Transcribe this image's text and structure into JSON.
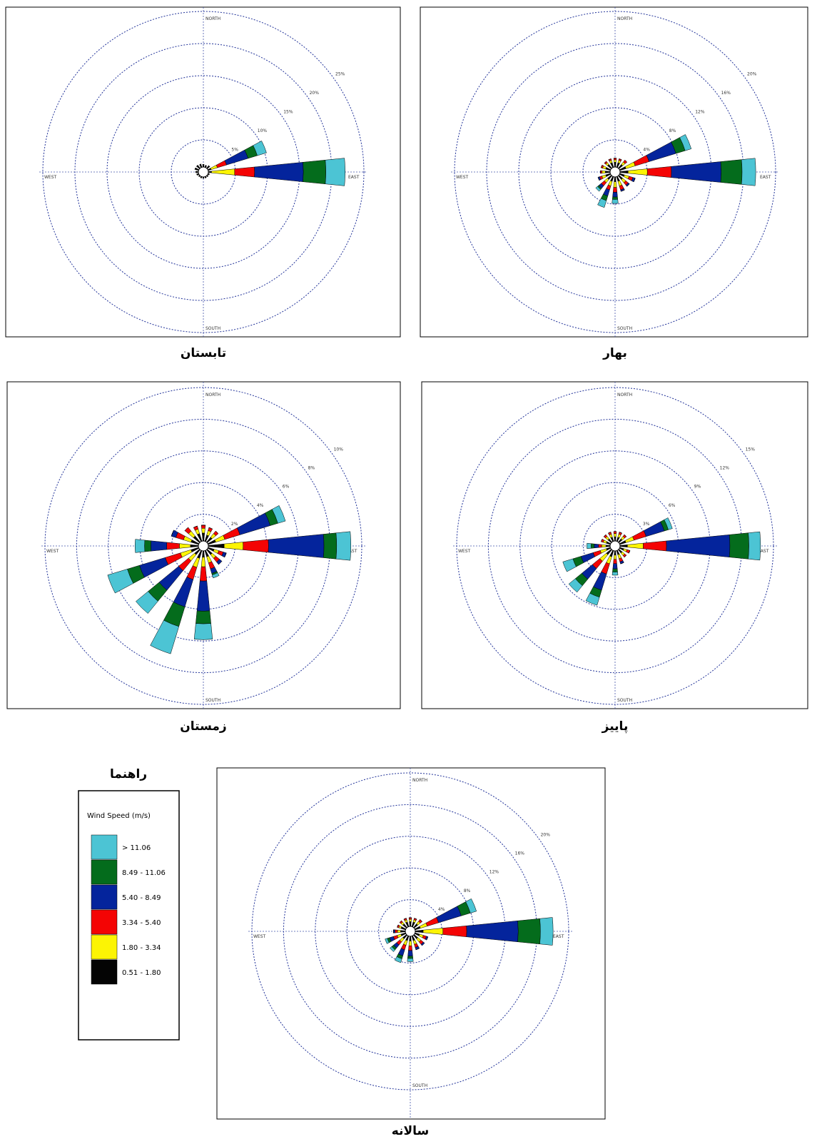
{
  "legend": {
    "title": "راهنما",
    "subtitle": "Wind Speed (m/s)",
    "classes": [
      {
        "name": "> 11.06",
        "color": "#4cc4d4"
      },
      {
        "name": "8.49 - 11.06",
        "color": "#046c1c"
      },
      {
        "name": "5.40 - 8.49",
        "color": "#04249c"
      },
      {
        "name": "3.34 - 5.40",
        "color": "#f40404"
      },
      {
        "name": "1.80 - 3.34",
        "color": "#fcf404"
      },
      {
        "name": "0.51 - 1.80",
        "color": "#040404"
      }
    ]
  },
  "chart_data": [
    {
      "type": "wind_rose",
      "title": "تابستان",
      "direction_labels": {
        "north": "NORTH",
        "east": "EAST",
        "south": "SOUTH",
        "west": "WEST"
      },
      "categories": [
        null,
        null,
        null,
        null,
        null,
        null,
        null,
        null,
        null,
        null,
        null,
        null,
        null,
        null,
        null,
        null
      ],
      "ylim": [
        0,
        25
      ],
      "yticks": [
        {
          "value": 5,
          "label": "5%"
        },
        {
          "value": 10,
          "label": "10%"
        },
        {
          "value": 15,
          "label": "15%"
        },
        {
          "value": 20,
          "label": "20%"
        },
        {
          "value": 25,
          "label": "25%"
        }
      ],
      "series": [
        {
          "values": [
            0,
            0,
            0,
            1.5,
            3.0,
            0,
            0,
            0,
            0,
            0,
            0,
            0,
            0,
            0,
            0,
            0
          ]
        },
        {
          "values": [
            0,
            0,
            0,
            1.5,
            3.5,
            0,
            0,
            0,
            0,
            0,
            0,
            0,
            0,
            0,
            0,
            0
          ]
        },
        {
          "values": [
            0,
            0,
            0,
            3.5,
            7.6,
            0,
            0,
            0,
            0,
            0,
            0,
            0,
            0,
            0,
            0,
            0
          ]
        },
        {
          "values": [
            0,
            0,
            0,
            1.5,
            3.1,
            0,
            0,
            0,
            0,
            0,
            0,
            0,
            0,
            0,
            0,
            0
          ]
        },
        {
          "values": [
            0,
            0,
            0,
            1.0,
            3.6,
            0,
            0,
            0,
            0,
            0,
            0,
            0,
            0,
            0,
            0,
            0
          ]
        },
        {
          "values": [
            0.4,
            0.3,
            0.5,
            0.5,
            0.5,
            0.2,
            0.2,
            0.2,
            0.2,
            0.2,
            0.2,
            0.3,
            0.4,
            0.6,
            0.6,
            0.5
          ]
        }
      ]
    },
    {
      "type": "wind_rose",
      "title": "بهار",
      "direction_labels": {
        "north": "NORTH",
        "east": "EAST",
        "south": "SOUTH",
        "west": "WEST"
      },
      "categories": [
        null,
        null,
        null,
        null,
        null,
        null,
        null,
        null,
        null,
        null,
        null,
        null,
        null,
        null,
        null,
        null
      ],
      "ylim": [
        0,
        20
      ],
      "yticks": [
        {
          "value": 4,
          "label": "4%"
        },
        {
          "value": 8,
          "label": "8%"
        },
        {
          "value": 12,
          "label": "12%"
        },
        {
          "value": 16,
          "label": "16%"
        },
        {
          "value": 20,
          "label": "20%"
        }
      ],
      "series": [
        {
          "values": [
            0,
            0,
            0,
            0.8,
            1.7,
            0,
            0,
            0,
            0.5,
            0.9,
            0.3,
            0,
            0,
            0,
            0,
            0
          ]
        },
        {
          "values": [
            0,
            0,
            0,
            1.2,
            2.6,
            0,
            0,
            0,
            0.3,
            0.6,
            0.2,
            0,
            0,
            0,
            0,
            0
          ]
        },
        {
          "values": [
            0,
            0,
            0,
            3.5,
            6.2,
            0.3,
            0.2,
            0.2,
            0.6,
            0.8,
            0.4,
            0.2,
            0,
            0,
            0,
            0
          ]
        },
        {
          "values": [
            0.2,
            0.2,
            0.3,
            1.8,
            3.0,
            0.5,
            0.4,
            0.5,
            0.6,
            0.5,
            0.5,
            0.3,
            0.2,
            0.2,
            0.2,
            0.2
          ]
        },
        {
          "values": [
            0.3,
            0.3,
            0.4,
            1.2,
            2.4,
            0.6,
            0.5,
            0.6,
            0.7,
            0.6,
            0.5,
            0.5,
            0.4,
            0.4,
            0.3,
            0.3
          ]
        },
        {
          "values": [
            0.6,
            0.6,
            0.6,
            0.8,
            1.0,
            0.6,
            0.6,
            0.6,
            0.6,
            0.6,
            0.6,
            0.6,
            0.6,
            0.6,
            0.6,
            0.6
          ]
        }
      ]
    },
    {
      "type": "wind_rose",
      "title": "زمستان",
      "direction_labels": {
        "north": "NORTH",
        "east": "EAST",
        "south": "SOUTH",
        "west": "WEST"
      },
      "categories": [
        null,
        null,
        null,
        null,
        null,
        null,
        null,
        null,
        null,
        null,
        null,
        null,
        null,
        null,
        null,
        null
      ],
      "ylim": [
        0,
        10
      ],
      "yticks": [
        {
          "value": 2,
          "label": "2%"
        },
        {
          "value": 4,
          "label": "4%"
        },
        {
          "value": 6,
          "label": "6%"
        },
        {
          "value": 8,
          "label": "8%"
        },
        {
          "value": 10,
          "label": "10%"
        }
      ],
      "series": [
        {
          "values": [
            0,
            0,
            0,
            0.5,
            0.9,
            0,
            0,
            0.2,
            1.0,
            1.8,
            1.0,
            1.3,
            0.6,
            0,
            0,
            0
          ]
        },
        {
          "values": [
            0,
            0,
            0,
            0.5,
            0.8,
            0,
            0,
            0.1,
            0.8,
            1.3,
            0.9,
            0.8,
            0.4,
            0,
            0,
            0
          ]
        },
        {
          "values": [
            0,
            0,
            0,
            2.0,
            3.5,
            0.2,
            0.2,
            0.3,
            1.9,
            1.8,
            1.6,
            1.7,
            1.0,
            0.3,
            0,
            0
          ]
        },
        {
          "values": [
            0.2,
            0.2,
            0.2,
            1.0,
            1.6,
            0.3,
            0.3,
            0.4,
            0.9,
            0.8,
            0.8,
            1.0,
            0.8,
            0.5,
            0.3,
            0.2
          ]
        },
        {
          "values": [
            0.3,
            0.3,
            0.3,
            0.6,
            1.2,
            0.3,
            0.3,
            0.4,
            0.6,
            0.6,
            0.5,
            0.7,
            0.7,
            0.5,
            0.4,
            0.3
          ]
        },
        {
          "values": [
            0.5,
            0.4,
            0.4,
            0.5,
            1.0,
            0.4,
            0.4,
            0.4,
            0.4,
            0.5,
            0.4,
            0.5,
            0.5,
            0.5,
            0.5,
            0.5
          ]
        }
      ]
    },
    {
      "type": "wind_rose",
      "title": "پاییز",
      "direction_labels": {
        "north": "NORTH",
        "east": "EAST",
        "south": "SOUTH",
        "west": "WEST"
      },
      "categories": [
        null,
        null,
        null,
        null,
        null,
        null,
        null,
        null,
        null,
        null,
        null,
        null,
        null,
        null,
        null,
        null
      ],
      "ylim": [
        0,
        15
      ],
      "yticks": [
        {
          "value": 3,
          "label": "3%"
        },
        {
          "value": 6,
          "label": "6%"
        },
        {
          "value": 9,
          "label": "9%"
        },
        {
          "value": 12,
          "label": "12%"
        },
        {
          "value": 15,
          "label": "15%"
        }
      ],
      "series": [
        {
          "values": [
            0,
            0,
            0,
            0.4,
            1.1,
            0,
            0,
            0,
            0.3,
            0.8,
            0.8,
            1.0,
            0.4,
            0,
            0,
            0
          ]
        },
        {
          "values": [
            0,
            0,
            0,
            0.4,
            1.8,
            0,
            0,
            0,
            0.3,
            0.7,
            0.8,
            0.8,
            0.3,
            0,
            0,
            0
          ]
        },
        {
          "values": [
            0,
            0,
            0,
            1.8,
            6.0,
            0,
            0,
            0.2,
            0.5,
            1.6,
            1.3,
            1.2,
            0.4,
            0,
            0,
            0
          ]
        },
        {
          "values": [
            0.2,
            0.2,
            0.2,
            1.2,
            2.2,
            0.3,
            0.2,
            0.3,
            0.4,
            1.0,
            0.9,
            0.7,
            0.3,
            0.2,
            0.2,
            0.2
          ]
        },
        {
          "values": [
            0.3,
            0.3,
            0.3,
            0.8,
            1.5,
            0.3,
            0.3,
            0.4,
            0.4,
            0.7,
            0.8,
            0.6,
            0.4,
            0.3,
            0.3,
            0.3
          ]
        },
        {
          "values": [
            0.4,
            0.4,
            0.4,
            0.6,
            0.7,
            0.4,
            0.4,
            0.4,
            0.4,
            0.6,
            0.6,
            0.4,
            0.4,
            0.4,
            0.4,
            0.4
          ]
        }
      ]
    },
    {
      "type": "wind_rose",
      "title": "سالانه",
      "direction_labels": {
        "north": "NORTH",
        "east": "EAST",
        "south": "SOUTH",
        "west": "WEST"
      },
      "categories": [
        null,
        null,
        null,
        null,
        null,
        null,
        null,
        null,
        null,
        null,
        null,
        null,
        null,
        null,
        null,
        null
      ],
      "ylim": [
        0,
        20
      ],
      "yticks": [
        {
          "value": 4,
          "label": "4%"
        },
        {
          "value": 8,
          "label": "8%"
        },
        {
          "value": 12,
          "label": "12%"
        },
        {
          "value": 16,
          "label": "16%"
        },
        {
          "value": 20,
          "label": "20%"
        }
      ],
      "series": [
        {
          "values": [
            0,
            0,
            0,
            0.8,
            1.6,
            0,
            0,
            0,
            0.4,
            0.5,
            0.3,
            0.3,
            0,
            0,
            0,
            0
          ]
        },
        {
          "values": [
            0,
            0,
            0,
            1.2,
            2.8,
            0,
            0,
            0,
            0.3,
            0.4,
            0.3,
            0.3,
            0,
            0,
            0,
            0
          ]
        },
        {
          "values": [
            0,
            0,
            0,
            3.0,
            6.5,
            0.2,
            0.2,
            0.3,
            0.7,
            0.8,
            0.5,
            0.5,
            0.2,
            0,
            0,
            0
          ]
        },
        {
          "values": [
            0.2,
            0.2,
            0.3,
            1.5,
            3.0,
            0.4,
            0.4,
            0.4,
            0.6,
            0.6,
            0.5,
            0.5,
            0.3,
            0.2,
            0.2,
            0.2
          ]
        },
        {
          "values": [
            0.3,
            0.3,
            0.4,
            0.9,
            2.5,
            0.5,
            0.5,
            0.5,
            0.6,
            0.6,
            0.5,
            0.5,
            0.4,
            0.3,
            0.3,
            0.3
          ]
        },
        {
          "values": [
            0.6,
            0.6,
            0.6,
            0.7,
            1.0,
            0.6,
            0.6,
            0.6,
            0.6,
            0.6,
            0.6,
            0.6,
            0.6,
            0.6,
            0.6,
            0.6
          ]
        }
      ]
    }
  ]
}
